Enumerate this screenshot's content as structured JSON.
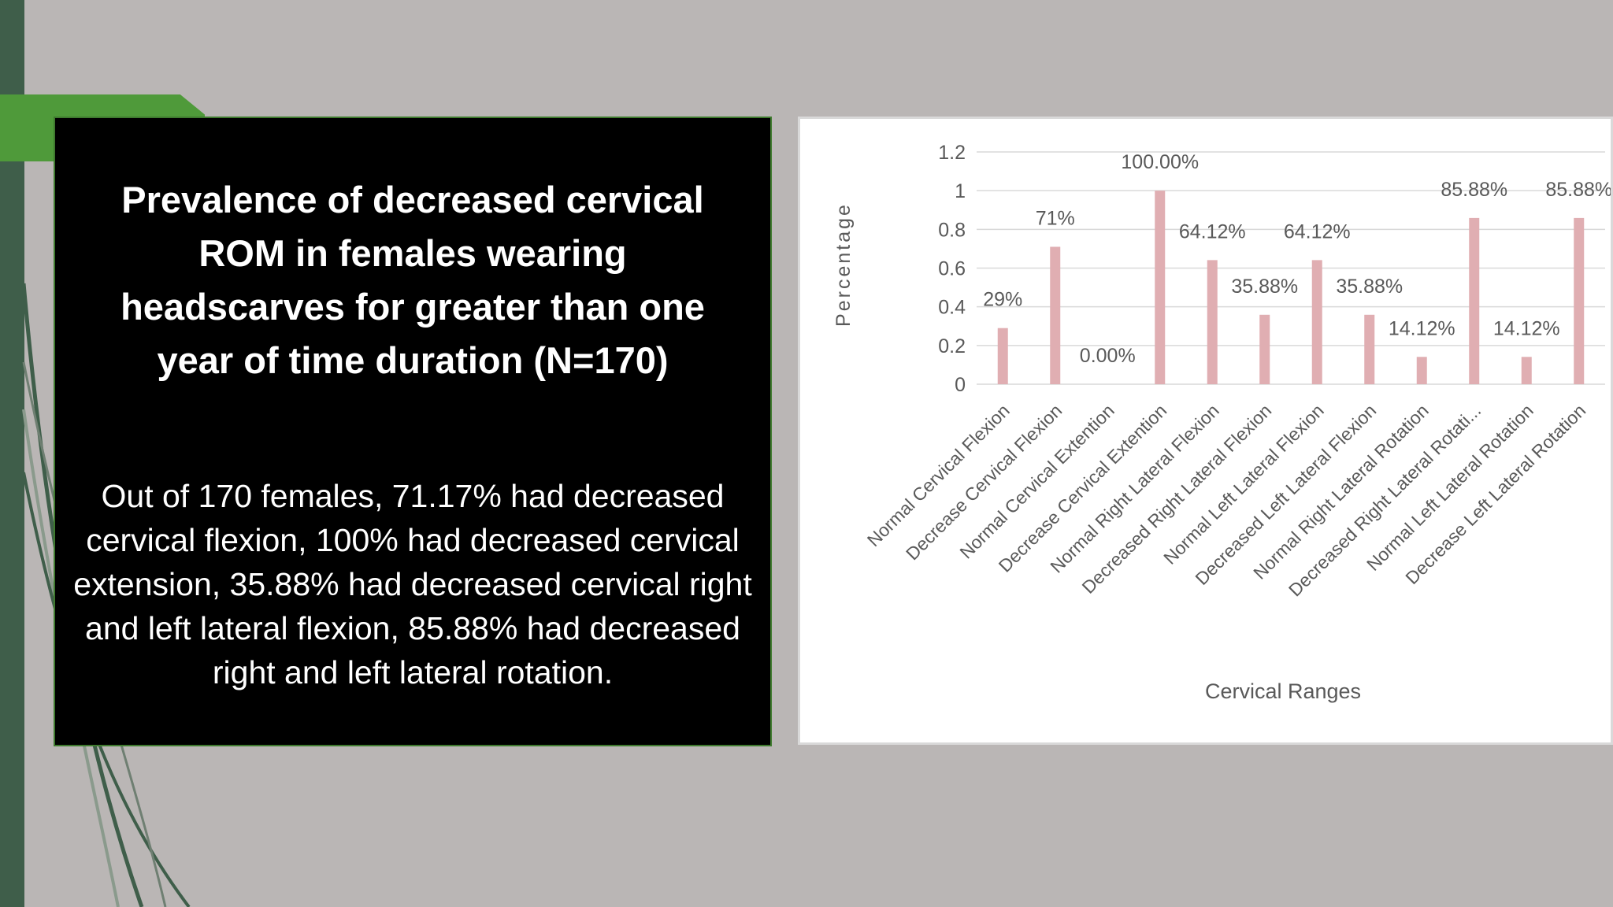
{
  "slide": {
    "title": "Prevalence of decreased cervical ROM in females wearing headscarves for greater than one year of time duration (N=170)",
    "body": "Out of 170 females, 71.17% had decreased cervical flexion, 100% had decreased cervical extension, 35.88%  had decreased cervical right and left lateral flexion, 85.88% had decreased right and left lateral rotation."
  },
  "colors": {
    "background": "#bab6b5",
    "accent_green": "#4f9a3a",
    "dark_green": "#3f5e4a",
    "bar": "#e0aeb2",
    "text_panel": "#000000"
  },
  "chart_data": {
    "type": "bar",
    "title": "",
    "xlabel": "Cervical Ranges",
    "ylabel": "Percentage",
    "ylim": [
      0,
      1.2
    ],
    "yticks": [
      0,
      0.2,
      0.4,
      0.6,
      0.8,
      1,
      1.2
    ],
    "ytick_labels": [
      "0",
      "0.2",
      "0.4",
      "0.6",
      "0.8",
      "1",
      "1.2"
    ],
    "grid": true,
    "categories": [
      "Normal Cervical Flexion",
      "Decrease Cervical Flexion",
      "Normal Cervical Extention",
      "Decrease Cervical Extention",
      "Normal Right Lateral Flexion",
      "Decreased Right Lateral Flexion",
      "Normal Left Lateral Flexion",
      "Decreased Left Lateral Flexion",
      "Normal Right Lateral Rotation",
      "Decreased Right Lateral Rotati...",
      "Normal Left Lateral Rotation",
      "Decrease Left Lateral Rotation"
    ],
    "values": [
      0.29,
      0.71,
      0.0,
      1.0,
      0.6412,
      0.3588,
      0.6412,
      0.3588,
      0.1412,
      0.8588,
      0.1412,
      0.8588
    ],
    "data_labels": [
      "29%",
      "71%",
      "0.00%",
      "100.00%",
      "64.12%",
      "35.88%",
      "64.12%",
      "35.88%",
      "14.12%",
      "85.88%",
      "14.12%",
      "85.88%"
    ]
  }
}
